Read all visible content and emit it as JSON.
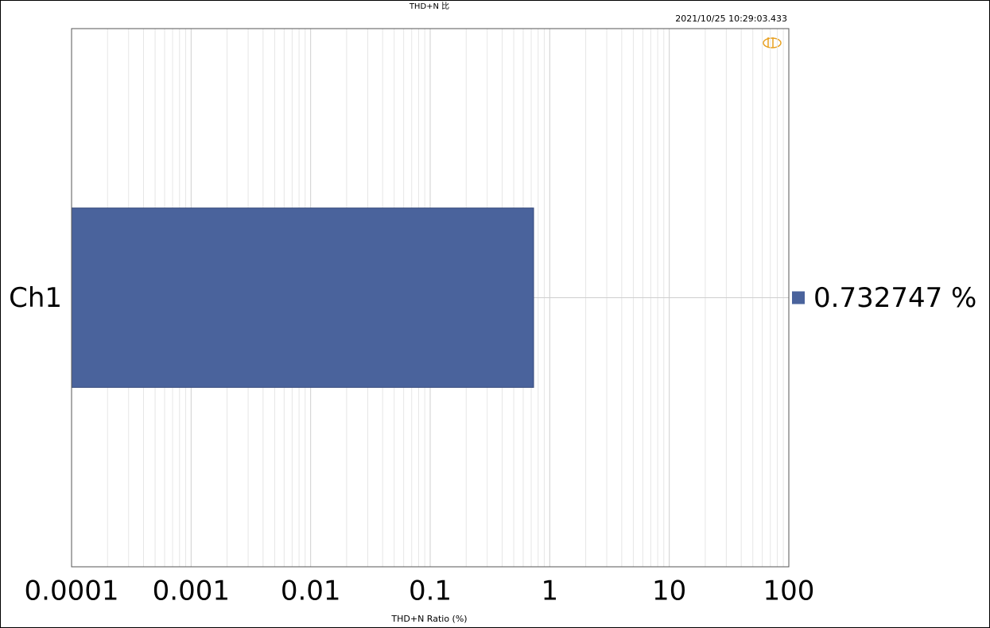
{
  "chart_data": {
    "type": "bar",
    "orientation": "horizontal",
    "title": "THD+N 比",
    "timestamp": "2021/10/25 10:29:03.433",
    "categories": [
      "Ch1"
    ],
    "values": [
      0.732747
    ],
    "value_labels": [
      "0.732747 %"
    ],
    "color": "#4a639c",
    "xlabel": "THD+N Ratio (%)",
    "xscale": "log",
    "xlim": [
      0.0001,
      100
    ],
    "xticks": [
      0.0001,
      0.001,
      0.01,
      0.1,
      1,
      10,
      100
    ],
    "grid": true
  }
}
